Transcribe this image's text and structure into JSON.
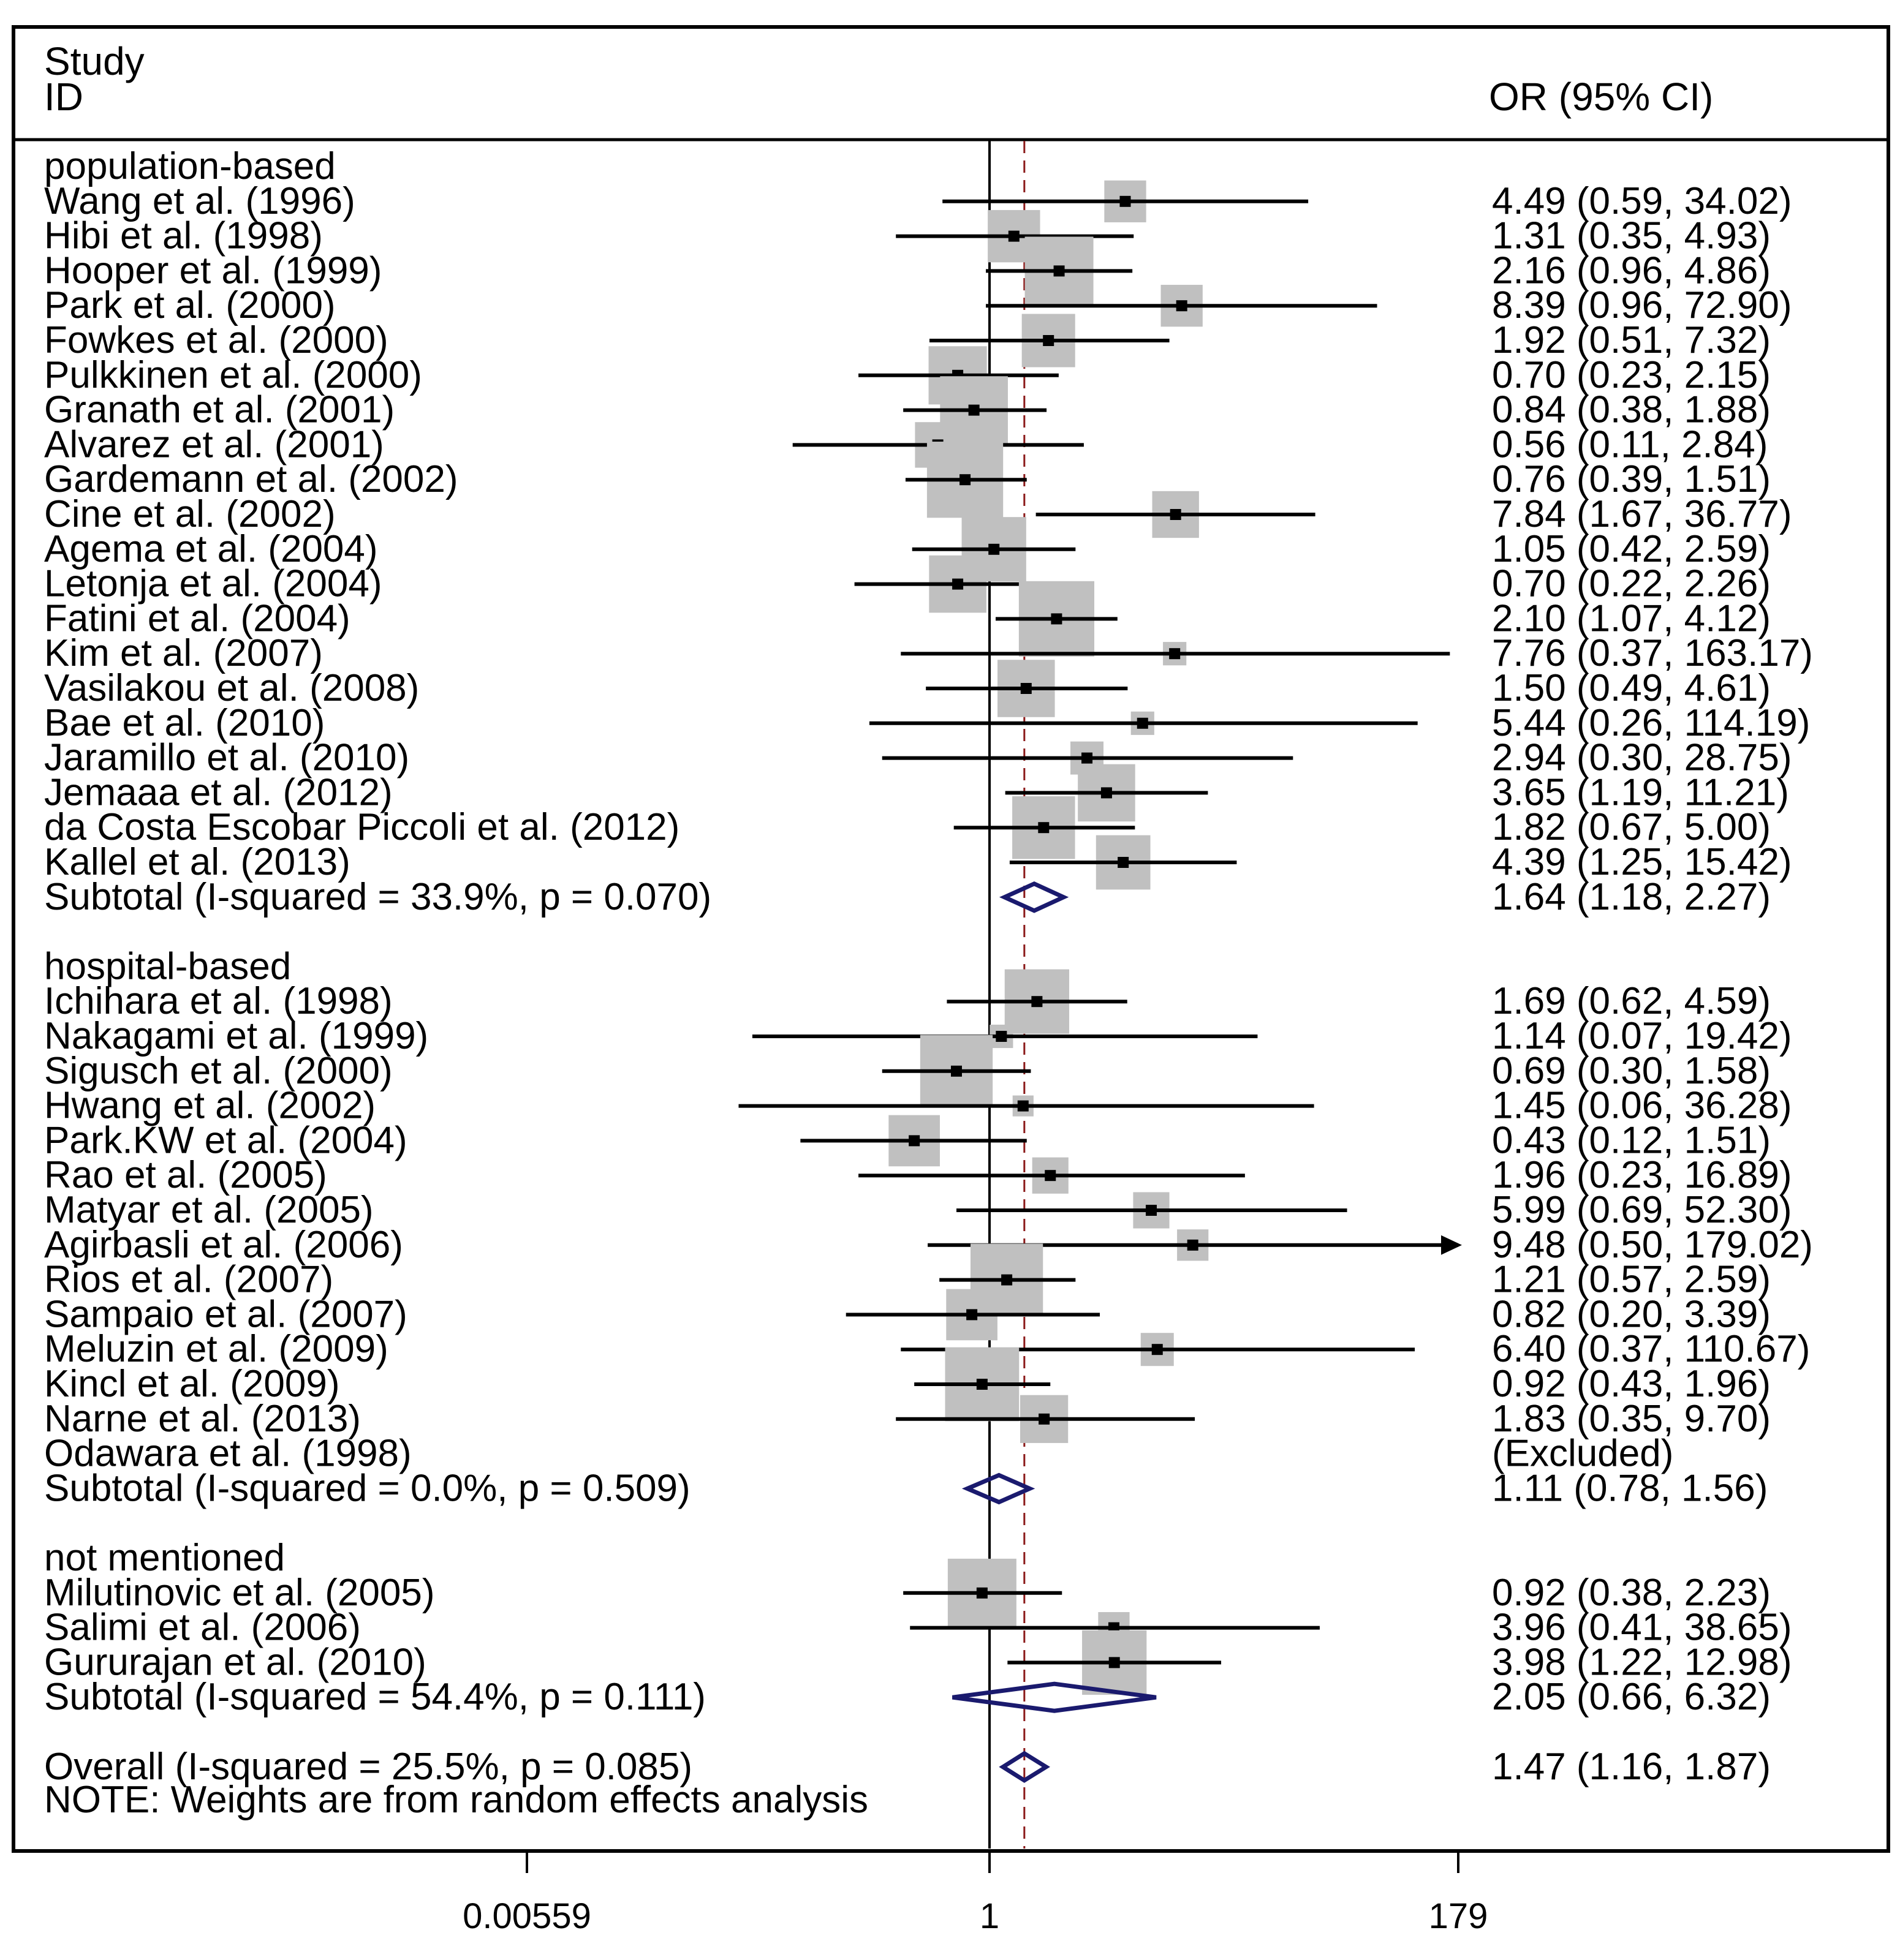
{
  "chart_data": {
    "type": "forest",
    "header": {
      "study_col": "Study",
      "id_col": "ID",
      "effect_col": "OR (95% CI)"
    },
    "axis": {
      "ticks": [
        {
          "value": 0.00559,
          "label": "0.00559"
        },
        {
          "value": 1,
          "label": "1"
        },
        {
          "value": 179,
          "label": "179"
        }
      ],
      "xlim": [
        0.00559,
        179
      ],
      "scale": "log",
      "null_line": 1
    },
    "groups": [
      {
        "name": "population-based",
        "studies": [
          {
            "label": "Wang et al.  (1996)",
            "or": 4.49,
            "lo": 0.59,
            "hi": 34.02,
            "ci_text": "4.49 (0.59, 34.02)",
            "weight": 1.6
          },
          {
            "label": "Hibi et al. (1998)",
            "or": 1.31,
            "lo": 0.35,
            "hi": 4.93,
            "ci_text": "1.31 (0.35, 4.93)",
            "weight": 2.5
          },
          {
            "label": "Hooper et al. (1999)",
            "or": 2.16,
            "lo": 0.96,
            "hi": 4.86,
            "ci_text": "2.16 (0.96, 4.86)",
            "weight": 4.3
          },
          {
            "label": "Park et al. (2000)",
            "or": 8.39,
            "lo": 0.96,
            "hi": 72.9,
            "ci_text": "8.39 (0.96, 72.90)",
            "weight": 1.6
          },
          {
            "label": "Fowkes et al. (2000)",
            "or": 1.92,
            "lo": 0.51,
            "hi": 7.32,
            "ci_text": "1.92 (0.51, 7.32)",
            "weight": 2.6
          },
          {
            "label": "Pulkkinen et al. (2000)",
            "or": 0.7,
            "lo": 0.23,
            "hi": 2.15,
            "ci_text": "0.70 (0.23, 2.15)",
            "weight": 3.1
          },
          {
            "label": "Granath et al. (2001)",
            "or": 0.84,
            "lo": 0.38,
            "hi": 1.88,
            "ci_text": "0.84 (0.38, 1.88)",
            "weight": 4.2
          },
          {
            "label": "Alvarez et al. (2001)",
            "or": 0.56,
            "lo": 0.11,
            "hi": 2.84,
            "ci_text": "0.56 (0.11, 2.84)",
            "weight": 1.9
          },
          {
            "label": "Gardemann et al. (2002)",
            "or": 0.76,
            "lo": 0.39,
            "hi": 1.51,
            "ci_text": "0.76 (0.39, 1.51)",
            "weight": 5.3
          },
          {
            "label": "Cine et al. (2002)",
            "or": 7.84,
            "lo": 1.67,
            "hi": 36.77,
            "ci_text": "7.84 (1.67, 36.77)",
            "weight": 2.0
          },
          {
            "label": "Agema et al. (2004)",
            "or": 1.05,
            "lo": 0.42,
            "hi": 2.59,
            "ci_text": "1.05 (0.42, 2.59)",
            "weight": 3.8
          },
          {
            "label": "Letonja et al. (2004)",
            "or": 0.7,
            "lo": 0.22,
            "hi": 2.26,
            "ci_text": "0.70 (0.22, 2.26)",
            "weight": 3.0
          },
          {
            "label": "Fatini et al. (2004)",
            "or": 2.1,
            "lo": 1.07,
            "hi": 4.12,
            "ci_text": "2.10 (1.07, 4.12)",
            "weight": 5.2
          },
          {
            "label": "Kim et al. (2007)",
            "or": 7.76,
            "lo": 0.37,
            "hi": 163.17,
            "ci_text": "7.76 (0.37, 163.17)",
            "weight": 0.5
          },
          {
            "label": "Vasilakou et al. (2008)",
            "or": 1.5,
            "lo": 0.49,
            "hi": 4.61,
            "ci_text": "1.50 (0.49, 4.61)",
            "weight": 3.0
          },
          {
            "label": "Bae et al. (2010)",
            "or": 5.44,
            "lo": 0.26,
            "hi": 114.19,
            "ci_text": "5.44 (0.26, 114.19)",
            "weight": 0.5
          },
          {
            "label": "Jaramillo et al. (2010)",
            "or": 2.94,
            "lo": 0.3,
            "hi": 28.75,
            "ci_text": "2.94 (0.30, 28.75)",
            "weight": 1.0
          },
          {
            "label": "Jemaaa et al. (2012)",
            "or": 3.65,
            "lo": 1.19,
            "hi": 11.21,
            "ci_text": "3.65 (1.19, 11.21)",
            "weight": 3.0
          },
          {
            "label": "da Costa Escobar Piccoli et al. (2012)",
            "or": 1.82,
            "lo": 0.67,
            "hi": 5.0,
            "ci_text": "1.82 (0.67, 5.00)",
            "weight": 3.6
          },
          {
            "label": "Kallel et al. (2013)",
            "or": 4.39,
            "lo": 1.25,
            "hi": 15.42,
            "ci_text": "4.39 (1.25, 15.42)",
            "weight": 2.7
          }
        ],
        "subtotal": {
          "label": "Subtotal  (I-squared = 33.9%, p = 0.070)",
          "or": 1.64,
          "lo": 1.18,
          "hi": 2.27,
          "ci_text": "1.64 (1.18, 2.27)"
        }
      },
      {
        "name": "hospital-based",
        "studies": [
          {
            "label": "Ichihara et al. (1998)",
            "or": 1.69,
            "lo": 0.62,
            "hi": 4.59,
            "ci_text": "1.69 (0.62, 4.59)",
            "weight": 3.8
          },
          {
            "label": "Nakagami et al. (1999)",
            "or": 1.14,
            "lo": 0.07,
            "hi": 19.42,
            "ci_text": "1.14 (0.07, 19.42)",
            "weight": 0.5
          },
          {
            "label": "Sigusch et al. (2000)",
            "or": 0.69,
            "lo": 0.3,
            "hi": 1.58,
            "ci_text": "0.69 (0.30, 1.58)",
            "weight": 4.8
          },
          {
            "label": "Hwang et al. (2002)",
            "or": 1.45,
            "lo": 0.06,
            "hi": 36.28,
            "ci_text": "1.45 (0.06, 36.28)",
            "weight": 0.4
          },
          {
            "label": "Park.KW et al. (2004)",
            "or": 0.43,
            "lo": 0.12,
            "hi": 1.51,
            "ci_text": "0.43 (0.12, 1.51)",
            "weight": 2.4
          },
          {
            "label": "Rao et al. (2005)",
            "or": 1.96,
            "lo": 0.23,
            "hi": 16.89,
            "ci_text": "1.96 (0.23, 16.89)",
            "weight": 1.2
          },
          {
            "label": "Matyar et al. (2005)",
            "or": 5.99,
            "lo": 0.69,
            "hi": 52.3,
            "ci_text": "5.99 (0.69, 52.30)",
            "weight": 1.2
          },
          {
            "label": "Agirbasli et al. (2006)",
            "or": 9.48,
            "lo": 0.5,
            "hi": 179.02,
            "ci_text": "9.48 (0.50, 179.02)",
            "weight": 0.9,
            "arrow": true
          },
          {
            "label": "Rios et al. (2007)",
            "or": 1.21,
            "lo": 0.57,
            "hi": 2.59,
            "ci_text": "1.21 (0.57, 2.59)",
            "weight": 4.8
          },
          {
            "label": "Sampaio et al. (2007)",
            "or": 0.82,
            "lo": 0.2,
            "hi": 3.39,
            "ci_text": "0.82 (0.20, 3.39)",
            "weight": 2.4
          },
          {
            "label": "Meluzin et al. (2009)",
            "or": 6.4,
            "lo": 0.37,
            "hi": 110.67,
            "ci_text": "6.40 (0.37, 110.67)",
            "weight": 1.0
          },
          {
            "label": "Kincl et al. (2009)",
            "or": 0.92,
            "lo": 0.43,
            "hi": 1.96,
            "ci_text": "0.92 (0.43, 1.96)",
            "weight": 5.0
          },
          {
            "label": "Narne et al. (2013)",
            "or": 1.83,
            "lo": 0.35,
            "hi": 9.7,
            "ci_text": "1.83 (0.35, 9.70)",
            "weight": 2.1
          },
          {
            "label": "Odawara et al. (1998)",
            "or": null,
            "lo": null,
            "hi": null,
            "ci_text": "(Excluded)",
            "weight": 0
          }
        ],
        "subtotal": {
          "label": "Subtotal  (I-squared = 0.0%, p = 0.509)",
          "or": 1.11,
          "lo": 0.78,
          "hi": 1.56,
          "ci_text": "1.11 (0.78, 1.56)"
        }
      },
      {
        "name": "not mentioned",
        "studies": [
          {
            "label": "Milutinovic et al. (2005)",
            "or": 0.92,
            "lo": 0.38,
            "hi": 2.23,
            "ci_text": "0.92 (0.38, 2.23)",
            "weight": 4.3
          },
          {
            "label": "Salimi et al. (2006)",
            "or": 3.96,
            "lo": 0.41,
            "hi": 38.65,
            "ci_text": "3.96 (0.41, 38.65)",
            "weight": 0.9
          },
          {
            "label": "Gururajan et al. (2010)",
            "or": 3.98,
            "lo": 1.22,
            "hi": 12.98,
            "ci_text": "3.98 (1.22, 12.98)",
            "weight": 3.8
          }
        ],
        "subtotal": {
          "label": "Subtotal  (I-squared = 54.4%, p = 0.111)",
          "or": 2.05,
          "lo": 0.66,
          "hi": 6.32,
          "ci_text": "2.05 (0.66, 6.32)"
        }
      }
    ],
    "overall": {
      "label": "Overall  (I-squared = 25.5%, p = 0.085)",
      "or": 1.47,
      "lo": 1.16,
      "hi": 1.87,
      "ci_text": "1.47 (1.16, 1.87)"
    },
    "note": "NOTE: Weights are from random effects analysis",
    "colors": {
      "box": "#c0c0c0",
      "line": "#000000",
      "diamond": "#1a1a6e",
      "overall_line": "#8b1a1a"
    }
  }
}
